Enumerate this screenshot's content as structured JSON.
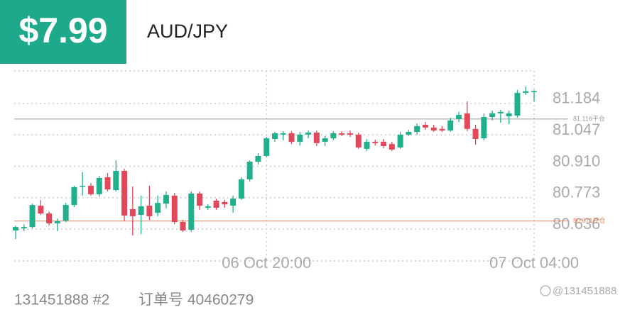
{
  "header": {
    "price": "$7.99",
    "symbol": "AUD/JPY"
  },
  "footer": {
    "account": "131451888 #2",
    "order": "订单号 40460279",
    "watermark": "@131451888"
  },
  "chart_data": {
    "type": "candlestick",
    "categories": [
      null,
      null,
      null,
      null,
      null,
      null,
      null,
      null,
      null,
      null,
      null,
      null,
      null,
      null,
      null,
      null,
      null,
      null,
      null,
      null,
      null,
      null,
      null,
      null,
      null,
      null,
      null,
      null,
      null,
      null,
      "06 Oct 20:00",
      null,
      null,
      null,
      null,
      null,
      null,
      null,
      null,
      null,
      null,
      null,
      null,
      null,
      null,
      null,
      null,
      null,
      null,
      null,
      null,
      null,
      null,
      null,
      null,
      null,
      null,
      null,
      null,
      null,
      null,
      null,
      "07 Oct 04:00"
    ],
    "open": [
      80.63,
      80.639,
      80.645,
      80.738,
      80.704,
      80.661,
      80.673,
      80.741,
      80.822,
      80.825,
      80.788,
      80.862,
      80.806,
      80.89,
      80.723,
      80.698,
      80.738,
      80.707,
      80.747,
      80.782,
      80.667,
      80.633,
      80.791,
      80.729,
      80.76,
      80.754,
      80.738,
      80.769,
      80.853,
      80.93,
      80.955,
      81.029,
      81.048,
      81.054,
      81.017,
      81.048,
      81.057,
      81.017,
      81.032,
      81.054,
      81.054,
      81.048,
      80.986,
      81.017,
      81.017,
      81.007,
      80.992,
      81.048,
      81.06,
      81.091,
      81.079,
      81.073,
      81.066,
      81.116,
      81.141,
      81.073,
      81.032,
      81.125,
      81.141,
      81.128,
      81.131,
      81.23,
      81.237
    ],
    "high": [
      80.651,
      80.657,
      80.747,
      80.763,
      80.713,
      80.682,
      80.75,
      80.825,
      80.884,
      80.837,
      80.868,
      80.881,
      80.936,
      80.899,
      80.822,
      80.782,
      80.825,
      80.782,
      80.8,
      80.794,
      80.676,
      80.8,
      80.8,
      80.744,
      80.769,
      80.763,
      80.782,
      80.862,
      80.936,
      80.967,
      81.038,
      81.06,
      81.063,
      81.063,
      81.06,
      81.066,
      81.066,
      81.042,
      81.063,
      81.063,
      81.066,
      81.057,
      81.029,
      81.026,
      81.029,
      81.017,
      81.06,
      81.069,
      81.097,
      81.103,
      81.091,
      81.085,
      81.122,
      81.147,
      81.193,
      81.091,
      81.141,
      81.153,
      81.156,
      81.153,
      81.243,
      81.258,
      81.243
    ],
    "low": [
      80.592,
      80.627,
      80.639,
      80.698,
      80.651,
      80.627,
      80.667,
      80.732,
      80.782,
      80.782,
      80.778,
      80.8,
      80.8,
      80.67,
      80.608,
      80.614,
      80.676,
      80.692,
      80.726,
      80.657,
      80.624,
      80.624,
      80.72,
      80.72,
      80.72,
      80.729,
      80.707,
      80.763,
      80.843,
      80.918,
      80.949,
      81.017,
      81.023,
      81.007,
      81.001,
      81.032,
      80.998,
      80.998,
      81.023,
      81.042,
      81.038,
      80.986,
      80.977,
      81.001,
      80.989,
      80.977,
      80.986,
      81.042,
      81.048,
      81.069,
      81.06,
      81.06,
      81.06,
      81.103,
      81.063,
      81.004,
      81.023,
      81.11,
      81.1,
      81.094,
      81.122,
      81.221,
      81.193
    ],
    "close": [
      80.645,
      80.645,
      80.741,
      80.704,
      80.661,
      80.67,
      80.741,
      80.819,
      80.825,
      80.788,
      80.859,
      80.809,
      80.89,
      80.695,
      80.692,
      80.735,
      80.692,
      80.75,
      80.785,
      80.667,
      80.63,
      80.791,
      80.738,
      80.735,
      80.729,
      80.744,
      80.769,
      80.853,
      80.93,
      80.955,
      81.032,
      81.054,
      81.054,
      81.017,
      81.048,
      81.057,
      81.011,
      81.032,
      81.054,
      81.048,
      81.048,
      80.992,
      81.017,
      81.011,
      80.998,
      80.983,
      81.048,
      81.06,
      81.085,
      81.079,
      81.066,
      81.066,
      81.11,
      81.134,
      81.073,
      81.029,
      81.125,
      81.141,
      81.147,
      81.141,
      81.23,
      81.237,
      81.238
    ],
    "up_color": "#22b08c",
    "down_color": "#e2485a",
    "ylim": [
      80.497,
      81.326
    ],
    "yticks": [
      81.184,
      81.047,
      {
        "value": 80.91,
        "label": "80.910"
      },
      80.773,
      80.636
    ],
    "ref_lines": [
      {
        "value": 81.116,
        "label": "81.116平仓",
        "color": "#9a9a9a"
      },
      {
        "value": 80.671,
        "label": "80.671开仓",
        "color": "#e8825a"
      }
    ],
    "grid": true
  }
}
